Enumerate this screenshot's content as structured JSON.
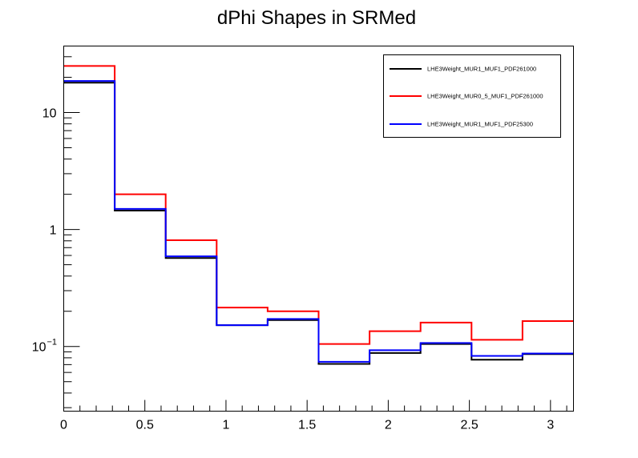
{
  "chart_data": {
    "type": "line",
    "title": "dPhi Shapes in SRMed",
    "xlabel": "",
    "ylabel": "",
    "xlim": [
      0,
      3.1416
    ],
    "ylim": [
      0.028,
      37
    ],
    "yscale": "log",
    "grid": false,
    "legend_position": "top-right",
    "bin_edges": [
      0,
      0.3142,
      0.6283,
      0.9425,
      1.2566,
      1.5708,
      1.885,
      2.1991,
      2.5133,
      2.8274,
      3.1416
    ],
    "x_ticks": [
      {
        "value": 0,
        "label": "0"
      },
      {
        "value": 0.5,
        "label": "0.5"
      },
      {
        "value": 1,
        "label": "1"
      },
      {
        "value": 1.5,
        "label": "1.5"
      },
      {
        "value": 2,
        "label": "2"
      },
      {
        "value": 2.5,
        "label": "2.5"
      },
      {
        "value": 3,
        "label": "3"
      }
    ],
    "y_ticks": [
      {
        "value": 0.1,
        "label": "10",
        "exponent": "−1"
      },
      {
        "value": 1,
        "label": "1",
        "exponent": ""
      },
      {
        "value": 10,
        "label": "10",
        "exponent": ""
      }
    ],
    "series": [
      {
        "name": "LHE3Weight_MUR1_MUF1_PDF261000",
        "color": "#000000",
        "values": [
          18.0,
          1.45,
          0.57,
          0.152,
          0.168,
          0.071,
          0.088,
          0.105,
          0.077,
          0.086
        ]
      },
      {
        "name": "LHE3Weight_MUR0_5_MUF1_PDF261000",
        "color": "#ff0000",
        "values": [
          25.0,
          2.0,
          0.81,
          0.215,
          0.2,
          0.105,
          0.135,
          0.16,
          0.114,
          0.165
        ]
      },
      {
        "name": "LHE3Weight_MUR1_MUF1_PDF25300",
        "color": "#0000ff",
        "values": [
          18.6,
          1.5,
          0.59,
          0.152,
          0.172,
          0.074,
          0.093,
          0.107,
          0.083,
          0.087
        ]
      }
    ]
  }
}
